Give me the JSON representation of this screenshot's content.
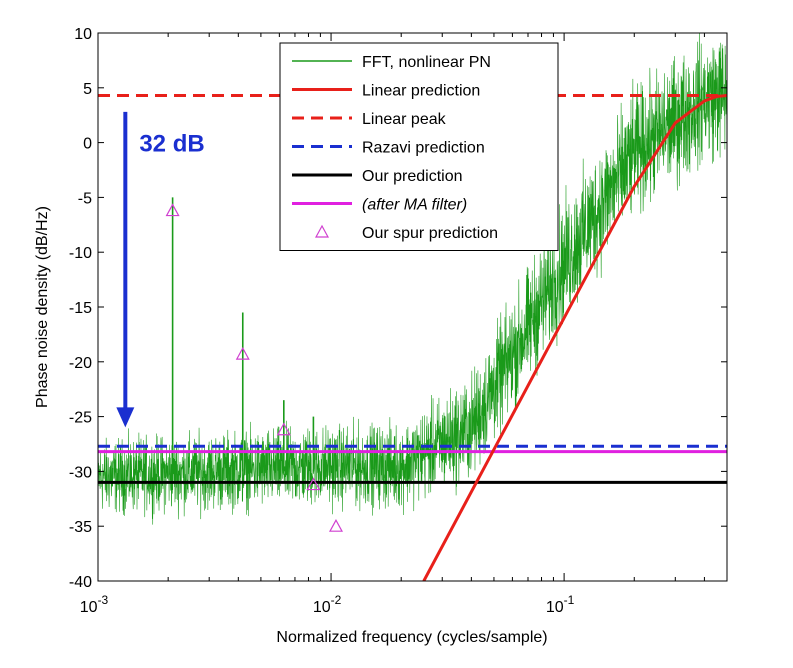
{
  "chart_data": {
    "type": "line",
    "title": "",
    "xlabel": "Normalized frequency (cycles/sample)",
    "ylabel": "Phase noise density (dB/Hz)",
    "xscale": "log",
    "xlim": [
      0.001,
      0.5
    ],
    "ylim": [
      -40,
      10
    ],
    "grid": false,
    "legend_position": "top-center",
    "x_ticks": [
      {
        "value": 0.001,
        "base": "10",
        "exp": "-3"
      },
      {
        "value": 0.01,
        "base": "10",
        "exp": "-2"
      },
      {
        "value": 0.1,
        "base": "10",
        "exp": "-1"
      }
    ],
    "y_ticks": [
      10,
      5,
      0,
      -5,
      -10,
      -15,
      -20,
      -25,
      -30,
      -35,
      -40
    ],
    "y_tick_labels": [
      "10",
      "5",
      "0",
      "-5",
      "-10",
      "-15",
      "-20",
      "-25",
      "-30",
      "-35",
      "-40"
    ],
    "series": [
      {
        "name": "FFT, nonlinear PN",
        "style": "noise",
        "color": "#1a9a1a",
        "envelope": [
          [
            0.001,
            -30.5
          ],
          [
            0.01,
            -29.5
          ],
          [
            0.02,
            -29.5
          ],
          [
            0.04,
            -26
          ],
          [
            0.1,
            -11
          ],
          [
            0.2,
            -1
          ],
          [
            0.4,
            4
          ],
          [
            0.5,
            4.5
          ]
        ],
        "spread_db": [
          [
            0.001,
            3.5
          ],
          [
            0.02,
            4
          ],
          [
            0.04,
            5
          ],
          [
            0.1,
            6
          ],
          [
            0.5,
            6
          ]
        ],
        "spikes": [
          {
            "x": 0.00209,
            "y": -5
          },
          {
            "x": 0.00418,
            "y": -15.5
          },
          {
            "x": 0.00627,
            "y": -23.5
          },
          {
            "x": 0.0084,
            "y": -25
          },
          {
            "x": 0.0105,
            "y": -28.5
          }
        ]
      },
      {
        "name": "Linear prediction",
        "style": "solid",
        "color": "#e8201a",
        "x": [
          0.025,
          0.05,
          0.1,
          0.2,
          0.3,
          0.4,
          0.45,
          0.5
        ],
        "y": [
          -40,
          -28,
          -16,
          -4,
          1.8,
          3.8,
          4.2,
          4.3
        ]
      },
      {
        "name": "Linear peak",
        "style": "dashed",
        "color": "#e8201a",
        "y_const": 4.3
      },
      {
        "name": "Razavi prediction",
        "style": "dashed",
        "color": "#1a2fd0",
        "y_const": -27.7
      },
      {
        "name": "Our prediction",
        "style": "solid",
        "color": "#000000",
        "y_const": -31
      },
      {
        "name": "(after MA filter)",
        "style": "solid",
        "color": "#e020e0",
        "y_const": -28.2
      },
      {
        "name": "Our spur prediction",
        "style": "triangle",
        "color": "#d040d0",
        "x": [
          0.00209,
          0.00418,
          0.00627,
          0.0084,
          0.0105
        ],
        "y": [
          -6.2,
          -19.3,
          -26.2,
          -31.2,
          -35
        ]
      }
    ],
    "annotations": [
      {
        "text": "32 dB",
        "color": "#1a2fd0",
        "arrow_x": 0.00131,
        "arrow_from": 2.8,
        "arrow_to": -25.8
      }
    ]
  }
}
